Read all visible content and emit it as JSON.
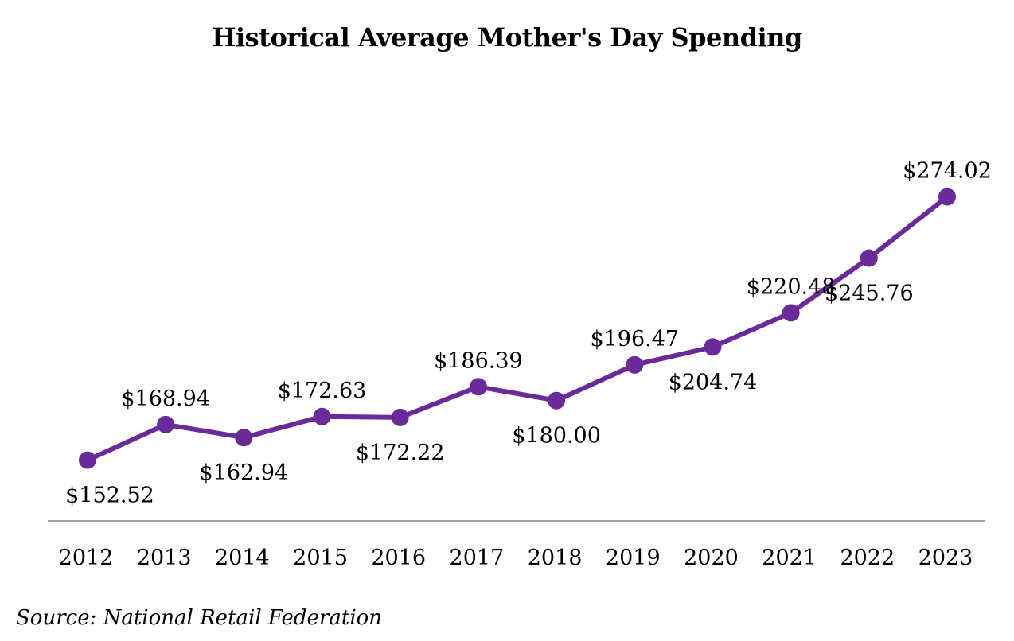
{
  "chart_data": {
    "type": "line",
    "title": "Historical Average Mother's Day Spending",
    "xlabel": "",
    "ylabel": "",
    "categories": [
      "2012",
      "2013",
      "2014",
      "2015",
      "2016",
      "2017",
      "2018",
      "2019",
      "2020",
      "2021",
      "2022",
      "2023"
    ],
    "series": [
      {
        "values": [
          152.52,
          168.94,
          162.94,
          172.63,
          172.22,
          186.39,
          180.0,
          196.47,
          204.74,
          220.48,
          245.76,
          274.02
        ],
        "data_labels": [
          "$152.52",
          "$168.94",
          "$162.94",
          "$172.63",
          "$172.22",
          "$186.39",
          "$180.00",
          "$196.47",
          "$204.74",
          "$220.48",
          "$245.76",
          "$274.02"
        ],
        "label_positions": [
          "below",
          "above",
          "below",
          "above",
          "below",
          "above",
          "below",
          "above",
          "below",
          "above",
          "below",
          "above"
        ]
      }
    ],
    "ylim": [
      100,
      300
    ],
    "grid": false,
    "legend": "none",
    "colors": {
      "line": "#6a2a9a",
      "axis": "#888888"
    }
  },
  "footer": {
    "source": "Source: National Retail Federation"
  }
}
